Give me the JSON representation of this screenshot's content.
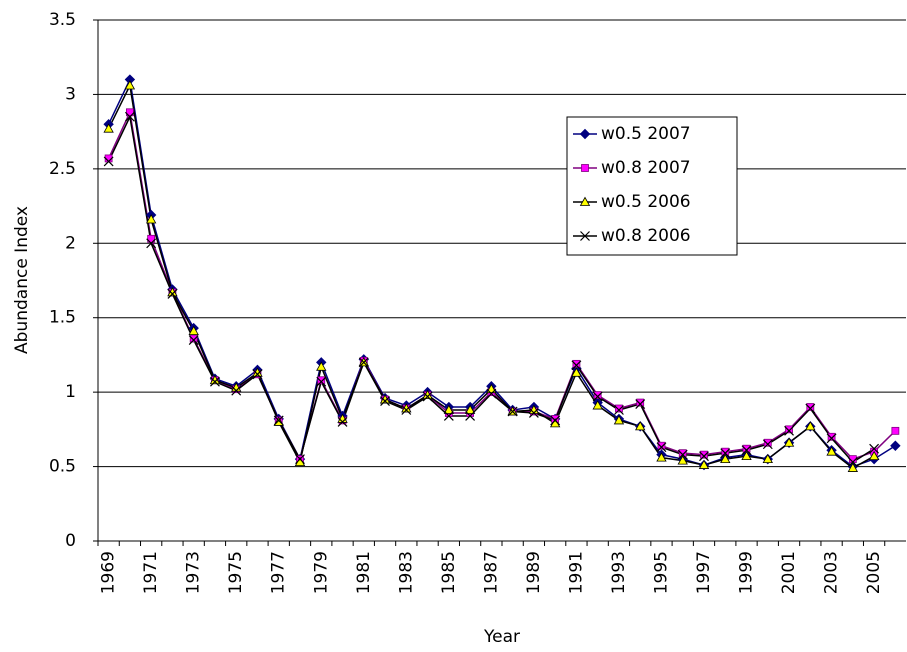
{
  "chart_data": {
    "type": "line",
    "x_label": "Year",
    "y_label": "Abundance Index",
    "categories": [
      "1969",
      null,
      "1971",
      null,
      "1973",
      null,
      "1975",
      null,
      "1977",
      null,
      "1979",
      null,
      "1981",
      null,
      "1983",
      null,
      "1985",
      null,
      "1987",
      null,
      "1989",
      null,
      "1991",
      null,
      "1993",
      null,
      "1995",
      null,
      "1997",
      null,
      "1999",
      null,
      "2001",
      null,
      "2003",
      null,
      "2005",
      null
    ],
    "ylim": [
      0,
      3.5
    ],
    "yticks": [
      0,
      0.5,
      1,
      1.5,
      2,
      2.5,
      3,
      3.5
    ],
    "grid": true,
    "legend": "upper right",
    "series": [
      {
        "name": "w0.5 2007",
        "color": "#000080",
        "line_color": "#000080",
        "marker": "diamond",
        "values": [
          2.8,
          3.1,
          2.19,
          1.69,
          1.43,
          1.09,
          1.04,
          1.15,
          0.82,
          0.55,
          1.2,
          0.84,
          1.22,
          0.96,
          0.91,
          1.0,
          0.9,
          0.9,
          1.04,
          0.88,
          0.9,
          0.82,
          1.16,
          0.93,
          0.82,
          0.77,
          0.58,
          0.55,
          0.51,
          0.56,
          0.58,
          0.55,
          0.66,
          0.77,
          0.61,
          0.5,
          0.55,
          0.64
        ]
      },
      {
        "name": "w0.8 2007",
        "color": "#ff00ff",
        "line_color": "#800080",
        "marker": "square",
        "values": [
          2.57,
          2.88,
          2.03,
          1.67,
          1.36,
          1.08,
          1.02,
          1.12,
          0.81,
          0.55,
          1.08,
          0.81,
          1.21,
          0.95,
          0.89,
          0.98,
          0.86,
          0.86,
          1.0,
          0.87,
          0.87,
          0.82,
          1.19,
          0.98,
          0.89,
          0.93,
          0.64,
          0.59,
          0.58,
          0.6,
          0.62,
          0.66,
          0.75,
          0.9,
          0.7,
          0.55,
          0.6,
          0.74
        ]
      },
      {
        "name": "w0.5 2006",
        "color": "#ffff00",
        "line_color": "#000000",
        "marker": "triangle",
        "values": [
          2.77,
          3.06,
          2.16,
          1.67,
          1.41,
          1.08,
          1.03,
          1.13,
          0.8,
          0.53,
          1.17,
          0.82,
          1.2,
          0.95,
          0.89,
          0.98,
          0.88,
          0.88,
          1.02,
          0.87,
          0.88,
          0.79,
          1.13,
          0.91,
          0.81,
          0.77,
          0.56,
          0.54,
          0.51,
          0.55,
          0.57,
          0.55,
          0.66,
          0.77,
          0.6,
          0.49,
          0.57,
          null
        ]
      },
      {
        "name": "w0.8 2006",
        "color": "#000000",
        "line_color": "#000000",
        "marker": "x",
        "values": [
          2.55,
          2.85,
          2.0,
          1.66,
          1.35,
          1.07,
          1.01,
          1.12,
          0.81,
          0.55,
          1.07,
          0.8,
          1.2,
          0.94,
          0.88,
          0.97,
          0.84,
          0.84,
          0.99,
          0.87,
          0.86,
          0.81,
          1.18,
          0.97,
          0.88,
          0.92,
          0.63,
          0.58,
          0.57,
          0.59,
          0.61,
          0.65,
          0.74,
          0.89,
          0.69,
          0.53,
          0.62,
          null
        ]
      }
    ]
  }
}
